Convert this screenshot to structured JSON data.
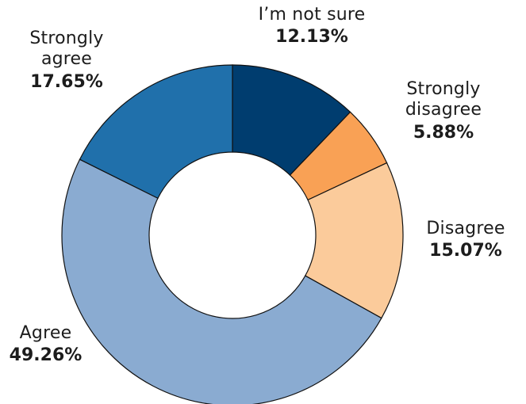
{
  "chart_data": {
    "type": "pie",
    "variant": "donut",
    "categories": [
      "I’m not sure",
      "Strongly disagree",
      "Disagree",
      "Agree",
      "Strongly agree"
    ],
    "values": [
      12.13,
      5.88,
      15.07,
      49.26,
      17.65
    ],
    "labels": {
      "not_sure": {
        "line1": "I’m not sure",
        "line2": "",
        "pct": "12.13%"
      },
      "strongly_disagree": {
        "line1": "Strongly",
        "line2": "disagree",
        "pct": "5.88%"
      },
      "disagree": {
        "line1": "Disagree",
        "line2": "",
        "pct": "15.07%"
      },
      "agree": {
        "line1": "Agree",
        "line2": "",
        "pct": "49.26%"
      },
      "strongly_agree": {
        "line1": "Strongly",
        "line2": "agree",
        "pct": "17.65%"
      }
    },
    "colors": [
      "#003d6f",
      "#f9a155",
      "#fbcb9b",
      "#8aabd1",
      "#2070ab"
    ],
    "slice_edge_color": "#111111",
    "start": "12 o'clock, clockwise"
  }
}
